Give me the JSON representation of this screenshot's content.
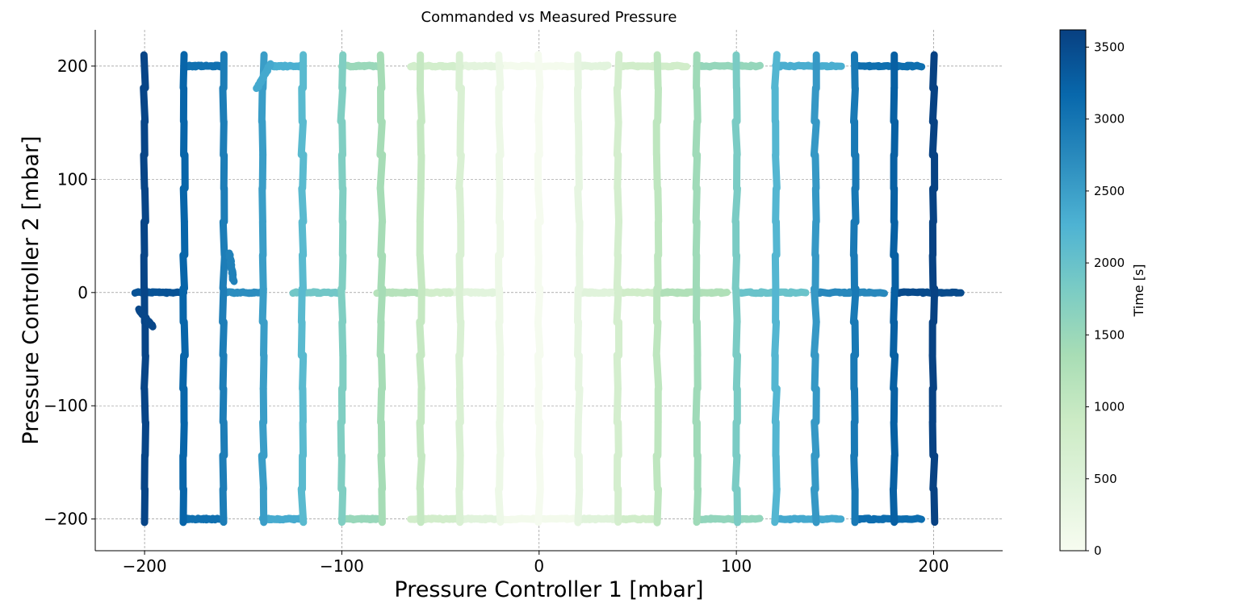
{
  "chart_data": {
    "type": "scatter",
    "title": "Commanded vs Measured Pressure",
    "xlabel": "Pressure Controller 1 [mbar]",
    "ylabel": "Pressure Controller 2 [mbar]",
    "xlim": [
      -225,
      235
    ],
    "ylim": [
      -228,
      232
    ],
    "xticks": [
      -200,
      -100,
      0,
      100,
      200
    ],
    "yticks": [
      -200,
      -100,
      0,
      100,
      200
    ],
    "xtick_labels": [
      "−200",
      "−100",
      "0",
      "100",
      "200"
    ],
    "ytick_labels": [
      "−200",
      "−100",
      "0",
      "100",
      "200"
    ],
    "grid": true,
    "colorbar": {
      "label": "Time [s]",
      "range": [
        0,
        3620
      ],
      "ticks": [
        0,
        500,
        1000,
        1500,
        2000,
        2500,
        3000,
        3500
      ],
      "tick_labels": [
        "0",
        "500",
        "1000",
        "1500",
        "2000",
        "2500",
        "3000",
        "3500"
      ],
      "colormap": "GnBu",
      "colormap_stops": [
        "#f7fcf0",
        "#e0f3db",
        "#ccebc5",
        "#a8ddb5",
        "#7bccc4",
        "#4eb3d3",
        "#2b8cbe",
        "#0868ac",
        "#084081"
      ]
    },
    "vertical_sweeps": [
      {
        "x": 0,
        "t": 30
      },
      {
        "x": -20,
        "t": 200
      },
      {
        "x": 20,
        "t": 330
      },
      {
        "x": -40,
        "t": 610
      },
      {
        "x": 40,
        "t": 720
      },
      {
        "x": -60,
        "t": 990
      },
      {
        "x": 60,
        "t": 1080
      },
      {
        "x": -80,
        "t": 1380
      },
      {
        "x": 80,
        "t": 1450
      },
      {
        "x": -100,
        "t": 1760
      },
      {
        "x": 100,
        "t": 1820
      },
      {
        "x": -120,
        "t": 2140
      },
      {
        "x": 120,
        "t": 2200
      },
      {
        "x": -140,
        "t": 2520
      },
      {
        "x": 140,
        "t": 2570
      },
      {
        "x": -160,
        "t": 2900
      },
      {
        "x": 160,
        "t": 2950
      },
      {
        "x": -180,
        "t": 3200
      },
      {
        "x": 180,
        "t": 3260
      },
      {
        "x": -200,
        "t": 3560
      },
      {
        "x": 200,
        "t": 3600
      }
    ],
    "horizontal_segments": [
      {
        "y": 200,
        "x0": -20,
        "x1": 20,
        "t": 60
      },
      {
        "y": -200,
        "x0": -20,
        "x1": 20,
        "t": 80
      },
      {
        "y": 200,
        "x0": -40,
        "x1": -20,
        "t": 400
      },
      {
        "y": 200,
        "x0": 20,
        "x1": 35,
        "t": 420
      },
      {
        "y": 0,
        "x0": -45,
        "x1": -20,
        "t": 420
      },
      {
        "y": 0,
        "x0": 20,
        "x1": 40,
        "t": 450
      },
      {
        "y": -200,
        "x0": -40,
        "x1": -20,
        "t": 440
      },
      {
        "y": -200,
        "x0": 20,
        "x1": 40,
        "t": 460
      },
      {
        "y": 200,
        "x0": -65,
        "x1": -40,
        "t": 760
      },
      {
        "y": 200,
        "x0": 40,
        "x1": 75,
        "t": 800
      },
      {
        "y": 0,
        "x0": -60,
        "x1": -45,
        "t": 760
      },
      {
        "y": 0,
        "x0": 40,
        "x1": 75,
        "t": 820
      },
      {
        "y": -200,
        "x0": -65,
        "x1": -40,
        "t": 780
      },
      {
        "y": -200,
        "x0": 40,
        "x1": 60,
        "t": 810
      },
      {
        "y": 200,
        "x0": -100,
        "x1": -80,
        "t": 1500
      },
      {
        "y": 200,
        "x0": 80,
        "x1": 112,
        "t": 1550
      },
      {
        "y": 0,
        "x0": -82,
        "x1": -60,
        "t": 1180
      },
      {
        "y": 0,
        "x0": 60,
        "x1": 95,
        "t": 1260
      },
      {
        "y": -200,
        "x0": -100,
        "x1": -80,
        "t": 1520
      },
      {
        "y": -200,
        "x0": 80,
        "x1": 112,
        "t": 1580
      },
      {
        "y": 200,
        "x0": -135,
        "x1": -120,
        "t": 2300
      },
      {
        "y": 200,
        "x0": 120,
        "x1": 153,
        "t": 2320
      },
      {
        "y": 0,
        "x0": -125,
        "x1": -100,
        "t": 1900
      },
      {
        "y": 0,
        "x0": 100,
        "x1": 135,
        "t": 1980
      },
      {
        "y": -200,
        "x0": -140,
        "x1": -120,
        "t": 2350
      },
      {
        "y": -200,
        "x0": 120,
        "x1": 153,
        "t": 2380
      },
      {
        "y": 200,
        "x0": -180,
        "x1": -160,
        "t": 3050
      },
      {
        "y": 200,
        "x0": 160,
        "x1": 194,
        "t": 3080
      },
      {
        "y": 0,
        "x0": -160,
        "x1": -140,
        "t": 2700
      },
      {
        "y": 0,
        "x0": 140,
        "x1": 175,
        "t": 2760
      },
      {
        "y": -200,
        "x0": -180,
        "x1": -160,
        "t": 3070
      },
      {
        "y": -200,
        "x0": 160,
        "x1": 194,
        "t": 3100
      },
      {
        "y": 0,
        "x0": -205,
        "x1": -180,
        "t": 3400
      },
      {
        "y": 0,
        "x0": 180,
        "x1": 214,
        "t": 3500
      }
    ],
    "transient_segments": [
      {
        "x0": -157,
        "y0": 35,
        "x1": -155,
        "y1": 10,
        "t": 2850
      },
      {
        "x0": -143,
        "y0": 180,
        "x1": -136,
        "y1": 202,
        "t": 2380
      },
      {
        "x0": -203,
        "y0": -15,
        "x1": -196,
        "y1": -30,
        "t": 3540
      }
    ]
  }
}
